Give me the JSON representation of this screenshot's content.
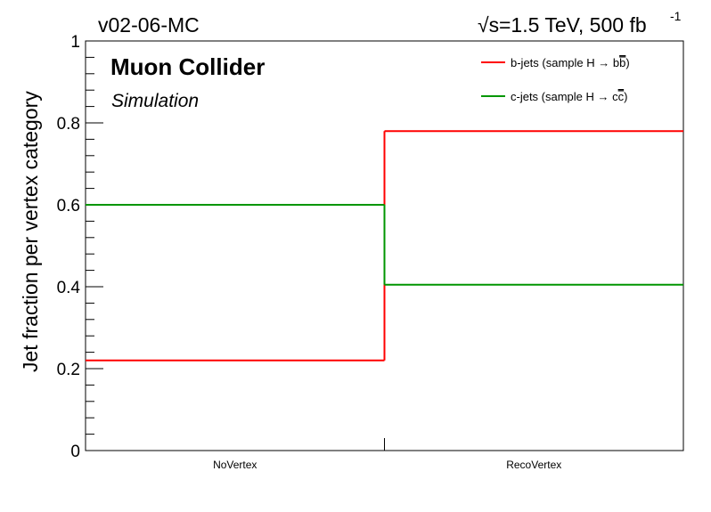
{
  "chart_data": {
    "type": "line",
    "title": "v02-06-MC",
    "energy_label": "=1.5 TeV, 500 fb",
    "energy_sqrt_symbol": "√s",
    "lumi_exponent": "-1",
    "experiment_label": "Muon Collider",
    "status_label": "Simulation",
    "ylabel": "Jet fraction per vertex category",
    "xlabel": "",
    "ylim": [
      0,
      1
    ],
    "y_ticks": [
      "0",
      "0.2",
      "0.4",
      "0.6",
      "0.8",
      "1"
    ],
    "categories": [
      "NoVertex",
      "RecoVertex"
    ],
    "legend_position": "top-right",
    "grid": false,
    "series": [
      {
        "name": "b-jets (sample H → bb̅)",
        "legend_prefix": "b-jets (sample H → b",
        "legend_bar": "b",
        "legend_suffix": ")",
        "color": "#ff0000",
        "values": [
          0.22,
          0.78
        ]
      },
      {
        "name": "c-jets (sample H → cc̅)",
        "legend_prefix": "c-jets (sample H → c",
        "legend_bar": "c",
        "legend_suffix": ")",
        "color": "#009600",
        "values": [
          0.6,
          0.405
        ]
      }
    ]
  }
}
